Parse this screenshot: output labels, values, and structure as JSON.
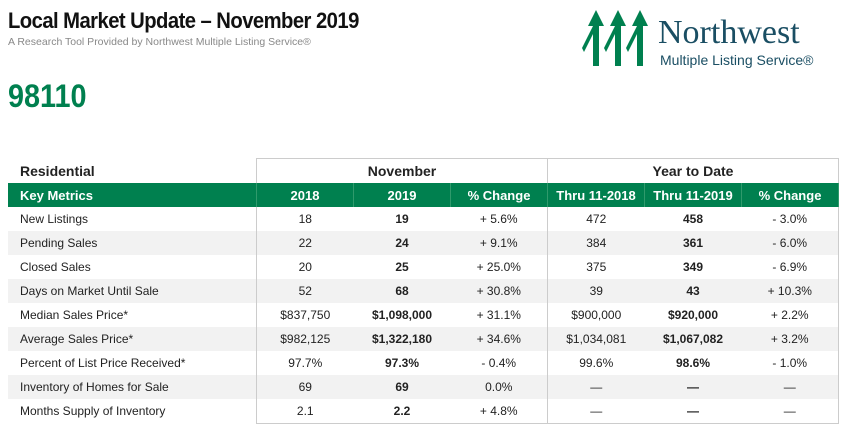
{
  "header": {
    "title": "Local Market Update – November 2019",
    "subtitle": "A Research Tool Provided by Northwest Multiple Listing Service®",
    "zip": "98110"
  },
  "logo": {
    "name": "Northwest",
    "tagline": "Multiple Listing Service®",
    "color": "#00804f"
  },
  "table": {
    "section": "Residential",
    "group1": "November",
    "group2": "Year to Date",
    "columns": [
      "Key Metrics",
      "2018",
      "2019",
      "% Change",
      "Thru 11-2018",
      "Thru 11-2019",
      "% Change"
    ],
    "rows": [
      [
        "New Listings",
        "18",
        "19",
        "+ 5.6%",
        "472",
        "458",
        "- 3.0%"
      ],
      [
        "Pending Sales",
        "22",
        "24",
        "+ 9.1%",
        "384",
        "361",
        "- 6.0%"
      ],
      [
        "Closed Sales",
        "20",
        "25",
        "+ 25.0%",
        "375",
        "349",
        "- 6.9%"
      ],
      [
        "Days on Market Until Sale",
        "52",
        "68",
        "+ 30.8%",
        "39",
        "43",
        "+ 10.3%"
      ],
      [
        "Median Sales Price*",
        "$837,750",
        "$1,098,000",
        "+ 31.1%",
        "$900,000",
        "$920,000",
        "+ 2.2%"
      ],
      [
        "Average Sales Price*",
        "$982,125",
        "$1,322,180",
        "+ 34.6%",
        "$1,034,081",
        "$1,067,082",
        "+ 3.2%"
      ],
      [
        "Percent of List Price Received*",
        "97.7%",
        "97.3%",
        "- 0.4%",
        "99.6%",
        "98.6%",
        "- 1.0%"
      ],
      [
        "Inventory of Homes for Sale",
        "69",
        "69",
        "0.0%",
        "—",
        "—",
        "—"
      ],
      [
        "Months Supply of Inventory",
        "2.1",
        "2.2",
        "+ 4.8%",
        "—",
        "—",
        "—"
      ]
    ]
  }
}
